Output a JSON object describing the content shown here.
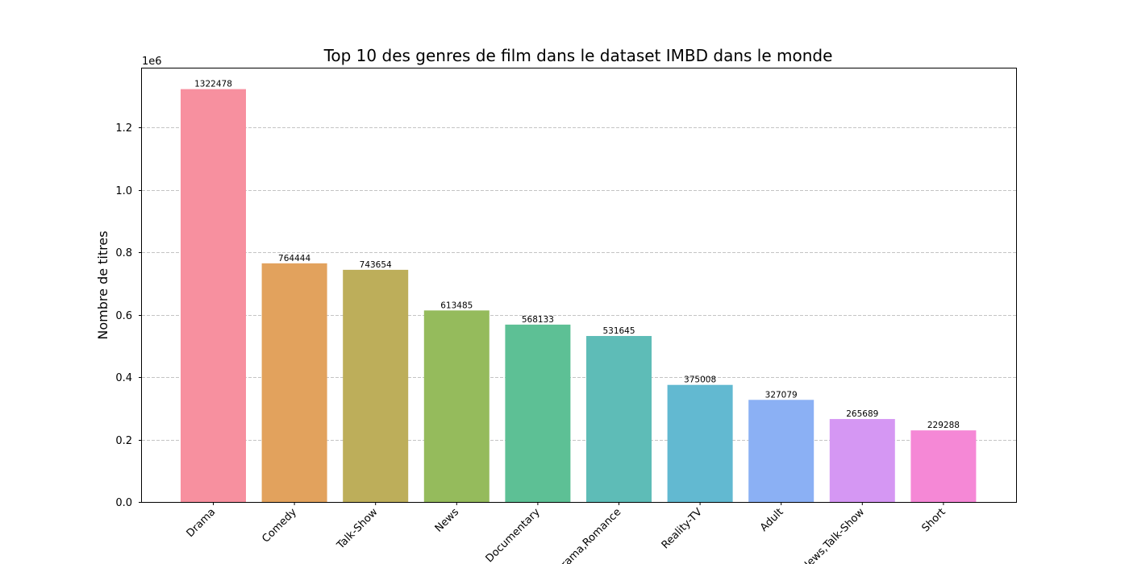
{
  "chart_data": {
    "type": "bar",
    "title": "Top 10 des genres de film dans le dataset IMBD dans le monde",
    "xlabel": "",
    "ylabel": "Nombre de titres",
    "scale_label": "1e6",
    "categories": [
      "Drama",
      "Comedy",
      "Talk-Show",
      "News",
      "Documentary",
      "Drama,Romance",
      "Reality-TV",
      "Adult",
      "News,Talk-Show",
      "Short"
    ],
    "values": [
      1322478,
      764444,
      743654,
      613485,
      568133,
      531645,
      375008,
      327079,
      265689,
      229288
    ],
    "data_labels": [
      "1322478",
      "764444",
      "743654",
      "613485",
      "568133",
      "531645",
      "375008",
      "327079",
      "265689",
      "229288"
    ],
    "colors": [
      "#f7909f",
      "#e2a25d",
      "#bdae5a",
      "#95bb5c",
      "#5dc095",
      "#5ebcb7",
      "#62b9d1",
      "#8bb0f4",
      "#d597f3",
      "#f588d6"
    ],
    "yticks": [
      0,
      0.2,
      0.4,
      0.6,
      0.8,
      1.0,
      1.2
    ],
    "ytick_labels": [
      "0.0",
      "0.2",
      "0.4",
      "0.6",
      "0.8",
      "1.0",
      "1.2"
    ],
    "ylim": [
      0,
      1388602
    ],
    "grid": "y-dashed",
    "legend": "none"
  }
}
